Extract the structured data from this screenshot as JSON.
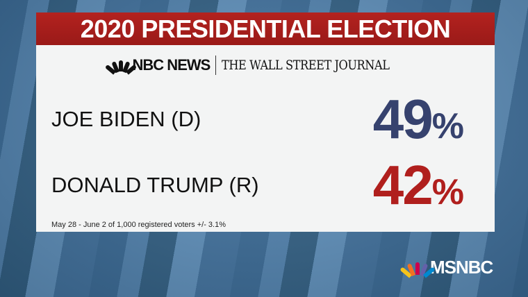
{
  "title": "2020 PRESIDENTIAL ELECTION",
  "sources": {
    "nbc": "NBC NEWS",
    "wsj": "THE WALL STREET JOURNAL"
  },
  "candidates": [
    {
      "name": "JOE BIDEN (D)",
      "value": "49",
      "unit": "%",
      "color": "#36426e"
    },
    {
      "name": "DONALD TRUMP (R)",
      "value": "42",
      "unit": "%",
      "color": "#b01f1d"
    }
  ],
  "note": "May 28 - June 2 of 1,000 registered voters +/- 3.1%",
  "network": "MSNBC"
}
